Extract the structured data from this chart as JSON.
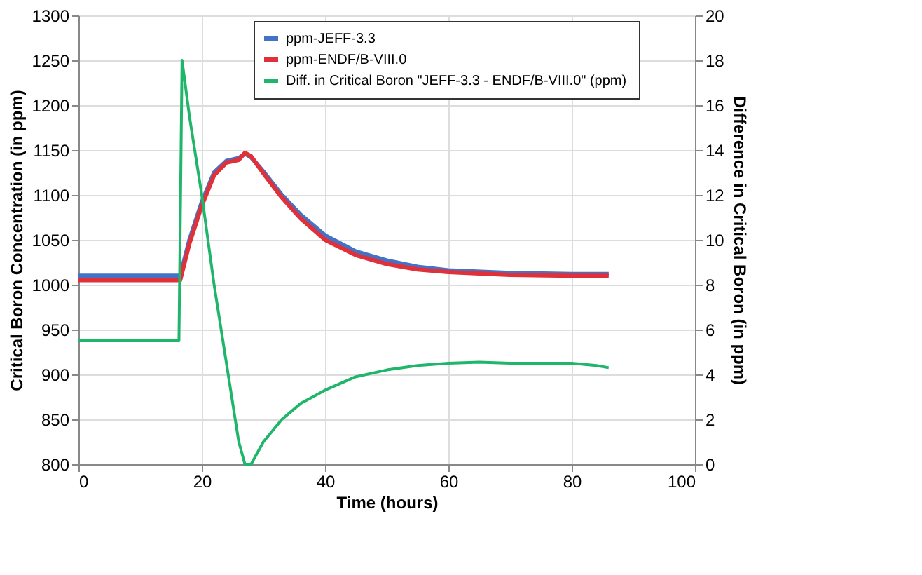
{
  "chart_data": {
    "type": "line",
    "xlabel": "Time (hours)",
    "ylabel": "Critical Boron Concentration (in ppm)",
    "y2label": "Difference in Critical Boron (in ppm)",
    "xlim": [
      0,
      100
    ],
    "xticks": [
      0,
      20,
      40,
      60,
      80,
      100
    ],
    "ylim": [
      800,
      1300
    ],
    "yticks": [
      800,
      850,
      900,
      950,
      1000,
      1050,
      1100,
      1150,
      1200,
      1250,
      1300
    ],
    "y2lim": [
      0,
      20
    ],
    "y2ticks": [
      0,
      2,
      4,
      6,
      8,
      10,
      12,
      14,
      16,
      18,
      20
    ],
    "grid": true,
    "legend": "top right",
    "line_style": "solid",
    "marker": "none",
    "series": [
      {
        "name": "ppm-JEFF-3.3",
        "color": "#4472c4",
        "x": [
          0,
          16.5,
          18,
          20,
          22,
          24,
          26,
          27,
          28,
          30,
          33,
          36,
          40,
          45,
          50,
          55,
          60,
          70,
          80,
          86
        ],
        "values": [
          1010,
          1010,
          1050,
          1092,
          1125,
          1138,
          1141,
          1146,
          1142,
          1126,
          1100,
          1078,
          1055,
          1037,
          1027,
          1020,
          1016,
          1013,
          1012,
          1012
        ]
      },
      {
        "name": "ppm-ENDF/B-VIII.0",
        "color": "#e0303a",
        "x": [
          0,
          16.5,
          18,
          20,
          22,
          24,
          26,
          27,
          28,
          30,
          33,
          36,
          40,
          45,
          50,
          55,
          60,
          70,
          80,
          86
        ],
        "values": [
          1005,
          1005,
          1046,
          1088,
          1122,
          1136,
          1139,
          1147,
          1143,
          1124,
          1097,
          1074,
          1050,
          1033,
          1023,
          1017,
          1014,
          1011,
          1010,
          1010
        ]
      },
      {
        "name": "Diff. in  Critical Boron \"JEFF-3.3 - ENDF/B-VIII.0\" (ppm)",
        "color": "#1fb56a",
        "axis": "y2",
        "x": [
          0,
          16.3,
          16.8,
          18,
          20,
          22,
          24,
          26,
          27,
          28,
          30,
          33,
          36,
          40,
          45,
          50,
          55,
          60,
          65,
          70,
          80,
          84,
          86
        ],
        "values": [
          5.5,
          5.5,
          18,
          15.5,
          12,
          8,
          4.5,
          1,
          0,
          0,
          1,
          2,
          2.7,
          3.3,
          3.9,
          4.2,
          4.4,
          4.5,
          4.55,
          4.5,
          4.5,
          4.4,
          4.3
        ]
      }
    ]
  }
}
